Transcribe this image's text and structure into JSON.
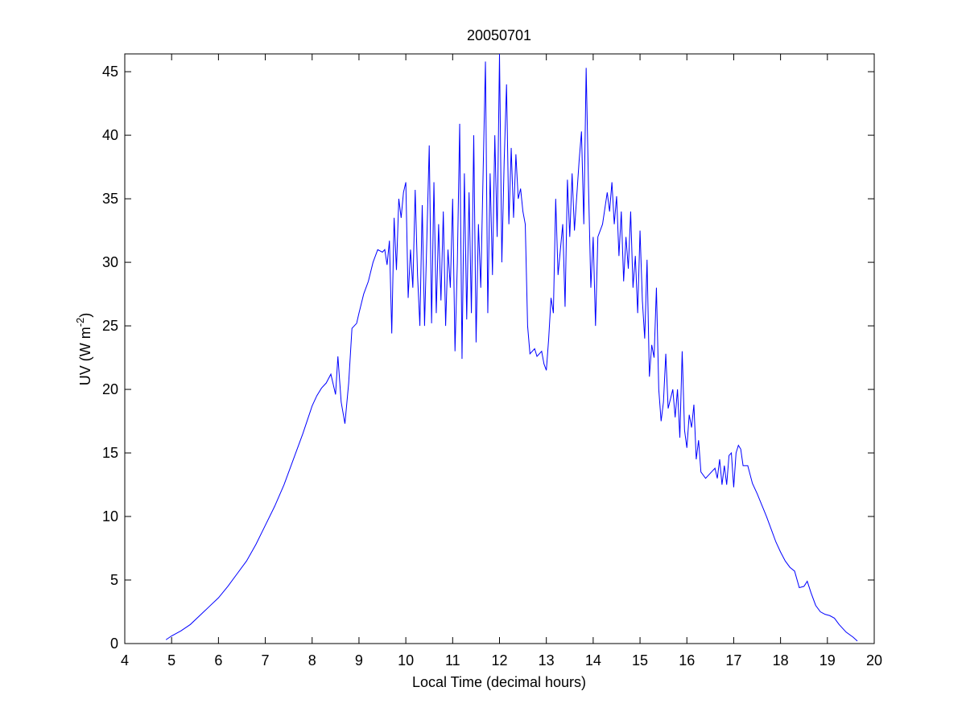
{
  "chart_data": {
    "type": "line",
    "title": "20050701",
    "xlabel": "Local Time (decimal hours)",
    "ylabel": [
      "UV (W m",
      "-2",
      ")"
    ],
    "xlim": [
      4,
      20
    ],
    "ylim": [
      0,
      46.4
    ],
    "xticks": [
      4,
      5,
      6,
      7,
      8,
      9,
      10,
      11,
      12,
      13,
      14,
      15,
      16,
      17,
      18,
      19,
      20
    ],
    "yticks": [
      0,
      5,
      10,
      15,
      20,
      25,
      30,
      35,
      40,
      45
    ],
    "series": [
      {
        "color": "#0000ff",
        "x": [
          4.88,
          5.0,
          5.2,
          5.4,
          5.6,
          5.8,
          6.0,
          6.2,
          6.4,
          6.6,
          6.8,
          7.0,
          7.2,
          7.4,
          7.6,
          7.8,
          8.0,
          8.1,
          8.2,
          8.3,
          8.4,
          8.5,
          8.55,
          8.62,
          8.7,
          8.78,
          8.85,
          8.95,
          9.0,
          9.1,
          9.2,
          9.3,
          9.4,
          9.5,
          9.55,
          9.6,
          9.65,
          9.7,
          9.75,
          9.8,
          9.85,
          9.9,
          9.95,
          10.0,
          10.05,
          10.1,
          10.15,
          10.2,
          10.25,
          10.3,
          10.35,
          10.4,
          10.45,
          10.5,
          10.55,
          10.6,
          10.65,
          10.7,
          10.75,
          10.8,
          10.85,
          10.9,
          10.95,
          11.0,
          11.05,
          11.1,
          11.15,
          11.2,
          11.25,
          11.3,
          11.35,
          11.4,
          11.45,
          11.5,
          11.55,
          11.6,
          11.65,
          11.7,
          11.75,
          11.8,
          11.85,
          11.9,
          11.95,
          12.0,
          12.05,
          12.1,
          12.15,
          12.2,
          12.25,
          12.3,
          12.35,
          12.4,
          12.45,
          12.5,
          12.55,
          12.6,
          12.65,
          12.75,
          12.8,
          12.9,
          12.95,
          13.0,
          13.05,
          13.1,
          13.15,
          13.2,
          13.25,
          13.3,
          13.35,
          13.4,
          13.45,
          13.5,
          13.55,
          13.6,
          13.7,
          13.75,
          13.8,
          13.85,
          13.9,
          13.95,
          14.0,
          14.05,
          14.1,
          14.2,
          14.3,
          14.35,
          14.4,
          14.45,
          14.5,
          14.55,
          14.6,
          14.65,
          14.7,
          14.75,
          14.8,
          14.85,
          14.9,
          14.95,
          15.0,
          15.05,
          15.1,
          15.15,
          15.2,
          15.25,
          15.3,
          15.35,
          15.4,
          15.45,
          15.5,
          15.55,
          15.6,
          15.7,
          15.75,
          15.8,
          15.85,
          15.9,
          15.95,
          16.0,
          16.05,
          16.1,
          16.15,
          16.2,
          16.25,
          16.3,
          16.4,
          16.5,
          16.6,
          16.65,
          16.7,
          16.75,
          16.8,
          16.85,
          16.9,
          16.95,
          17.0,
          17.05,
          17.1,
          17.15,
          17.2,
          17.3,
          17.4,
          17.5,
          17.6,
          17.7,
          17.8,
          17.9,
          18.0,
          18.1,
          18.2,
          18.3,
          18.4,
          18.5,
          18.57,
          18.65,
          18.75,
          18.85,
          18.95,
          19.05,
          19.15,
          19.25,
          19.4,
          19.55,
          19.64
        ],
        "values": [
          0.3,
          0.6,
          1.0,
          1.5,
          2.2,
          2.9,
          3.6,
          4.5,
          5.5,
          6.5,
          7.8,
          9.3,
          10.8,
          12.5,
          14.5,
          16.5,
          18.7,
          19.5,
          20.1,
          20.5,
          21.2,
          19.6,
          22.6,
          19.0,
          17.3,
          20.5,
          24.8,
          25.2,
          26.0,
          27.5,
          28.5,
          30.0,
          31.0,
          30.8,
          31.0,
          29.8,
          31.7,
          24.4,
          33.5,
          29.4,
          35.0,
          33.5,
          35.5,
          36.3,
          27.2,
          31.0,
          28.0,
          35.7,
          29.0,
          25.0,
          34.5,
          25.0,
          32.0,
          39.2,
          25.2,
          36.3,
          26.0,
          33.0,
          27.0,
          34.0,
          25.0,
          31.0,
          28.0,
          35.0,
          23.0,
          30.0,
          40.9,
          22.4,
          37.0,
          25.5,
          35.5,
          26.0,
          40.0,
          23.7,
          33.0,
          28.0,
          37.0,
          45.8,
          26.0,
          37.0,
          29.0,
          40.0,
          32.0,
          46.4,
          30.0,
          38.0,
          44.0,
          33.0,
          39.0,
          33.5,
          38.5,
          35.0,
          35.8,
          34.0,
          33.0,
          25.0,
          22.8,
          23.2,
          22.6,
          23.0,
          22.0,
          21.5,
          24.0,
          27.2,
          26.0,
          35.0,
          29.0,
          31.0,
          33.0,
          26.5,
          36.5,
          32.0,
          37.0,
          32.5,
          38.0,
          40.3,
          33.0,
          45.3,
          36.0,
          28.0,
          32.0,
          25.0,
          32.0,
          33.0,
          35.5,
          34.0,
          36.3,
          33.0,
          35.2,
          30.5,
          34.0,
          28.5,
          32.0,
          29.5,
          34.0,
          28.0,
          30.5,
          26.0,
          32.5,
          27.0,
          24.0,
          30.2,
          21.0,
          23.5,
          22.5,
          28.0,
          20.0,
          17.5,
          19.0,
          22.8,
          18.5,
          20.0,
          17.8,
          20.0,
          16.2,
          23.0,
          16.8,
          15.4,
          18.0,
          17.0,
          18.8,
          14.5,
          16.0,
          13.5,
          13.0,
          13.4,
          13.8,
          13.0,
          14.5,
          12.5,
          14.0,
          12.5,
          14.8,
          15.0,
          12.3,
          15.0,
          15.6,
          15.3,
          14.0,
          14.0,
          12.6,
          11.8,
          10.9,
          10.0,
          9.0,
          8.0,
          7.2,
          6.5,
          6.0,
          5.7,
          4.4,
          4.5,
          4.9,
          4.0,
          3.0,
          2.5,
          2.3,
          2.2,
          2.0,
          1.5,
          0.9,
          0.5,
          0.2
        ]
      }
    ]
  }
}
